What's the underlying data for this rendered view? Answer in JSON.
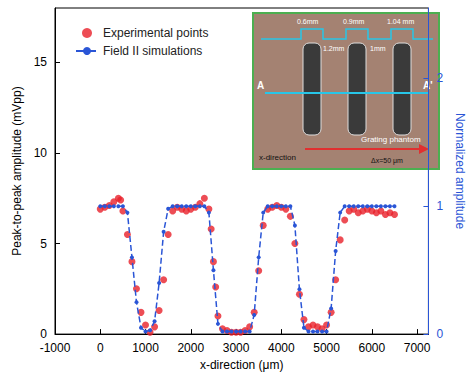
{
  "chart_data": {
    "type": "scatter",
    "x_label": "x-direction (μm)",
    "y_label": "Peak-to-peak amplitude (mVpp)",
    "y2_label": "Normalized amplitude",
    "xlim": [
      -1000,
      7250
    ],
    "xticks": [
      -1000,
      0,
      1000,
      2000,
      3000,
      4000,
      5000,
      6000,
      7000
    ],
    "ylim": [
      0,
      18
    ],
    "yticks": [
      0,
      5,
      10,
      15
    ],
    "y2lim": [
      0,
      2.55
    ],
    "y2ticks": [
      0,
      1,
      2
    ],
    "grid": false,
    "legend": "upper left",
    "annotations": [
      "0.6mm",
      "0.9mm",
      "1.04 mm",
      "1.2mm",
      "1mm",
      "A",
      "A'",
      "Grating phantom",
      "x-direction",
      "Δx=50 μm"
    ],
    "series": [
      {
        "name": "Experimental points",
        "type": "scatter",
        "color": "#e8202a",
        "marker": "circle",
        "x": [
          0,
          100,
          200,
          300,
          400,
          450,
          500,
          600,
          700,
          800,
          900,
          1000,
          1100,
          1200,
          1300,
          1400,
          1500,
          1600,
          1700,
          1800,
          1900,
          2000,
          2100,
          2200,
          2300,
          2400,
          2450,
          2500,
          2550,
          2600,
          2700,
          2800,
          2900,
          3000,
          3100,
          3200,
          3300,
          3400,
          3500,
          3600,
          3700,
          3800,
          3900,
          4000,
          4100,
          4200,
          4300,
          4400,
          4500,
          4600,
          4700,
          4800,
          4900,
          5000,
          5100,
          5200,
          5300,
          5400,
          5500,
          5600,
          5700,
          5800,
          5900,
          6000,
          6100,
          6200,
          6300,
          6400,
          6500
        ],
        "values": [
          6.9,
          7.0,
          7.1,
          7.3,
          7.5,
          7.4,
          6.8,
          5.5,
          4.0,
          2.5,
          1.2,
          0.5,
          0.1,
          0.4,
          1.3,
          3.0,
          5.5,
          6.8,
          7.0,
          6.9,
          6.8,
          6.9,
          7.0,
          7.2,
          7.5,
          6.9,
          5.8,
          4.0,
          2.6,
          1.0,
          0.3,
          0.2,
          0.1,
          0.1,
          0.1,
          0.2,
          0.4,
          1.2,
          3.5,
          6.0,
          6.9,
          7.0,
          7.1,
          7.0,
          6.9,
          6.5,
          5.0,
          2.2,
          0.8,
          0.4,
          0.5,
          0.4,
          0.3,
          0.5,
          1.2,
          3.0,
          5.2,
          6.3,
          6.8,
          6.9,
          6.7,
          6.8,
          6.9,
          6.8,
          6.7,
          6.8,
          6.6,
          6.7,
          6.6
        ]
      },
      {
        "name": "Field II simulations",
        "type": "line",
        "color": "#2a55d6",
        "marker": "circle",
        "line_style": "dashed",
        "axis": "y2",
        "x": [
          0,
          100,
          200,
          300,
          400,
          500,
          600,
          700,
          800,
          900,
          1000,
          1100,
          1200,
          1300,
          1400,
          1500,
          1600,
          1700,
          1800,
          1900,
          2000,
          2100,
          2200,
          2300,
          2400,
          2500,
          2600,
          2700,
          2800,
          2900,
          3000,
          3100,
          3200,
          3300,
          3400,
          3500,
          3600,
          3700,
          3800,
          3900,
          4000,
          4100,
          4200,
          4300,
          4400,
          4500,
          4600,
          4700,
          4800,
          4900,
          5000,
          5100,
          5200,
          5300,
          5400,
          5500,
          5600,
          5700,
          5800,
          5900,
          6000,
          6100,
          6200,
          6300,
          6400,
          6500
        ],
        "values": [
          1.0,
          1.0,
          1.0,
          1.0,
          1.0,
          1.0,
          0.95,
          0.6,
          0.25,
          0.05,
          0.02,
          0.03,
          0.1,
          0.4,
          0.8,
          0.98,
          1.0,
          1.0,
          1.0,
          1.0,
          1.0,
          1.0,
          1.0,
          1.0,
          0.95,
          0.5,
          0.08,
          0.02,
          0.02,
          0.02,
          0.02,
          0.02,
          0.02,
          0.02,
          0.15,
          0.6,
          0.95,
          1.0,
          1.0,
          1.0,
          1.0,
          1.0,
          1.0,
          0.85,
          0.35,
          0.05,
          0.02,
          0.02,
          0.02,
          0.02,
          0.02,
          0.2,
          0.65,
          0.95,
          1.0,
          1.0,
          1.0,
          1.0,
          1.0,
          1.0,
          1.0,
          1.0,
          1.0,
          1.0,
          1.0,
          1.0
        ]
      }
    ]
  }
}
